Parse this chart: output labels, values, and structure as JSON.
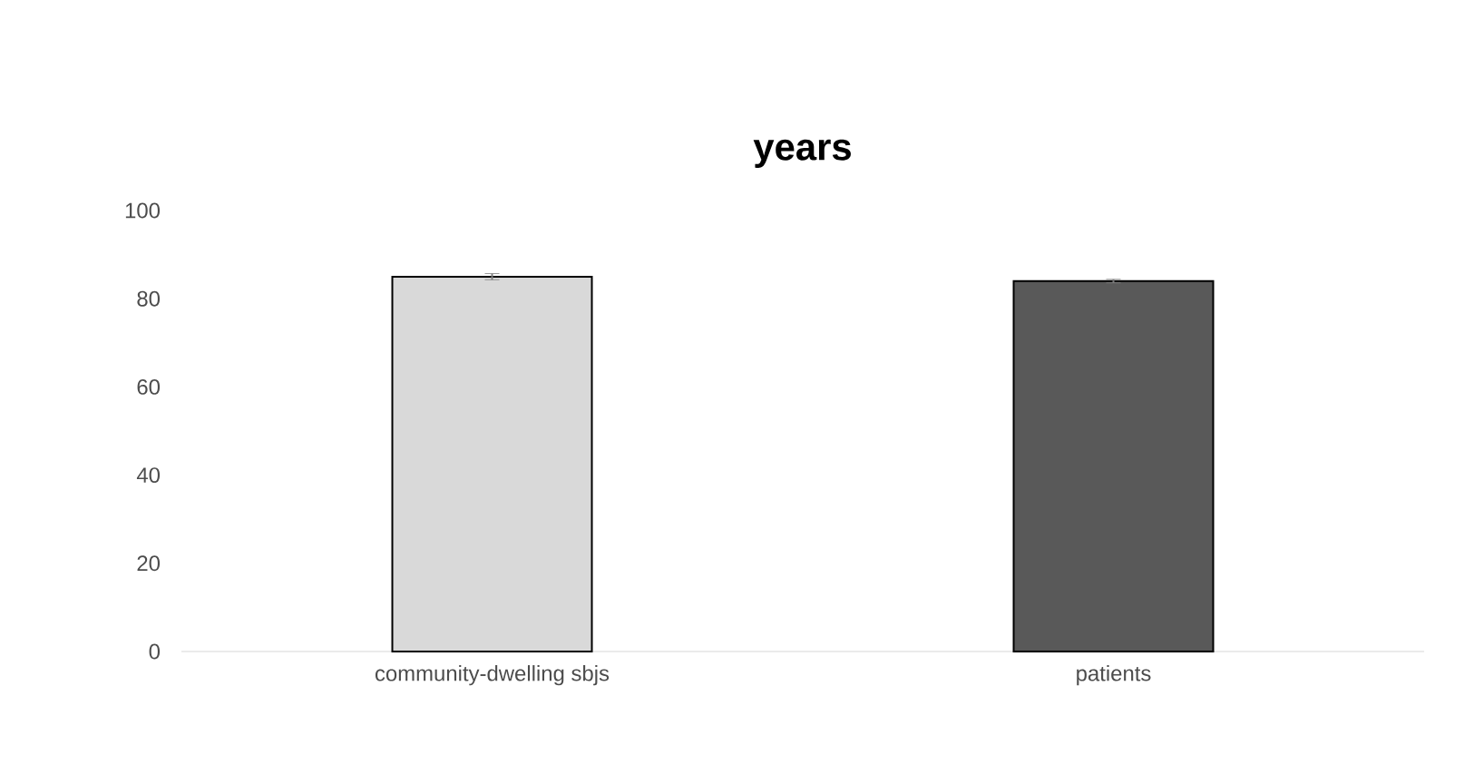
{
  "chart_data": {
    "type": "bar",
    "title": "**years**",
    "categories": [
      "community-dwelling sbjs",
      "patients"
    ],
    "values": [
      85.0,
      84.0
    ],
    "colors": [
      "#d9d9d9",
      "#595959"
    ],
    "errors": [
      0.7,
      0.4
    ],
    "ylim": [
      0,
      100
    ],
    "yticks": [
      0,
      20,
      40,
      60,
      80,
      100
    ]
  }
}
